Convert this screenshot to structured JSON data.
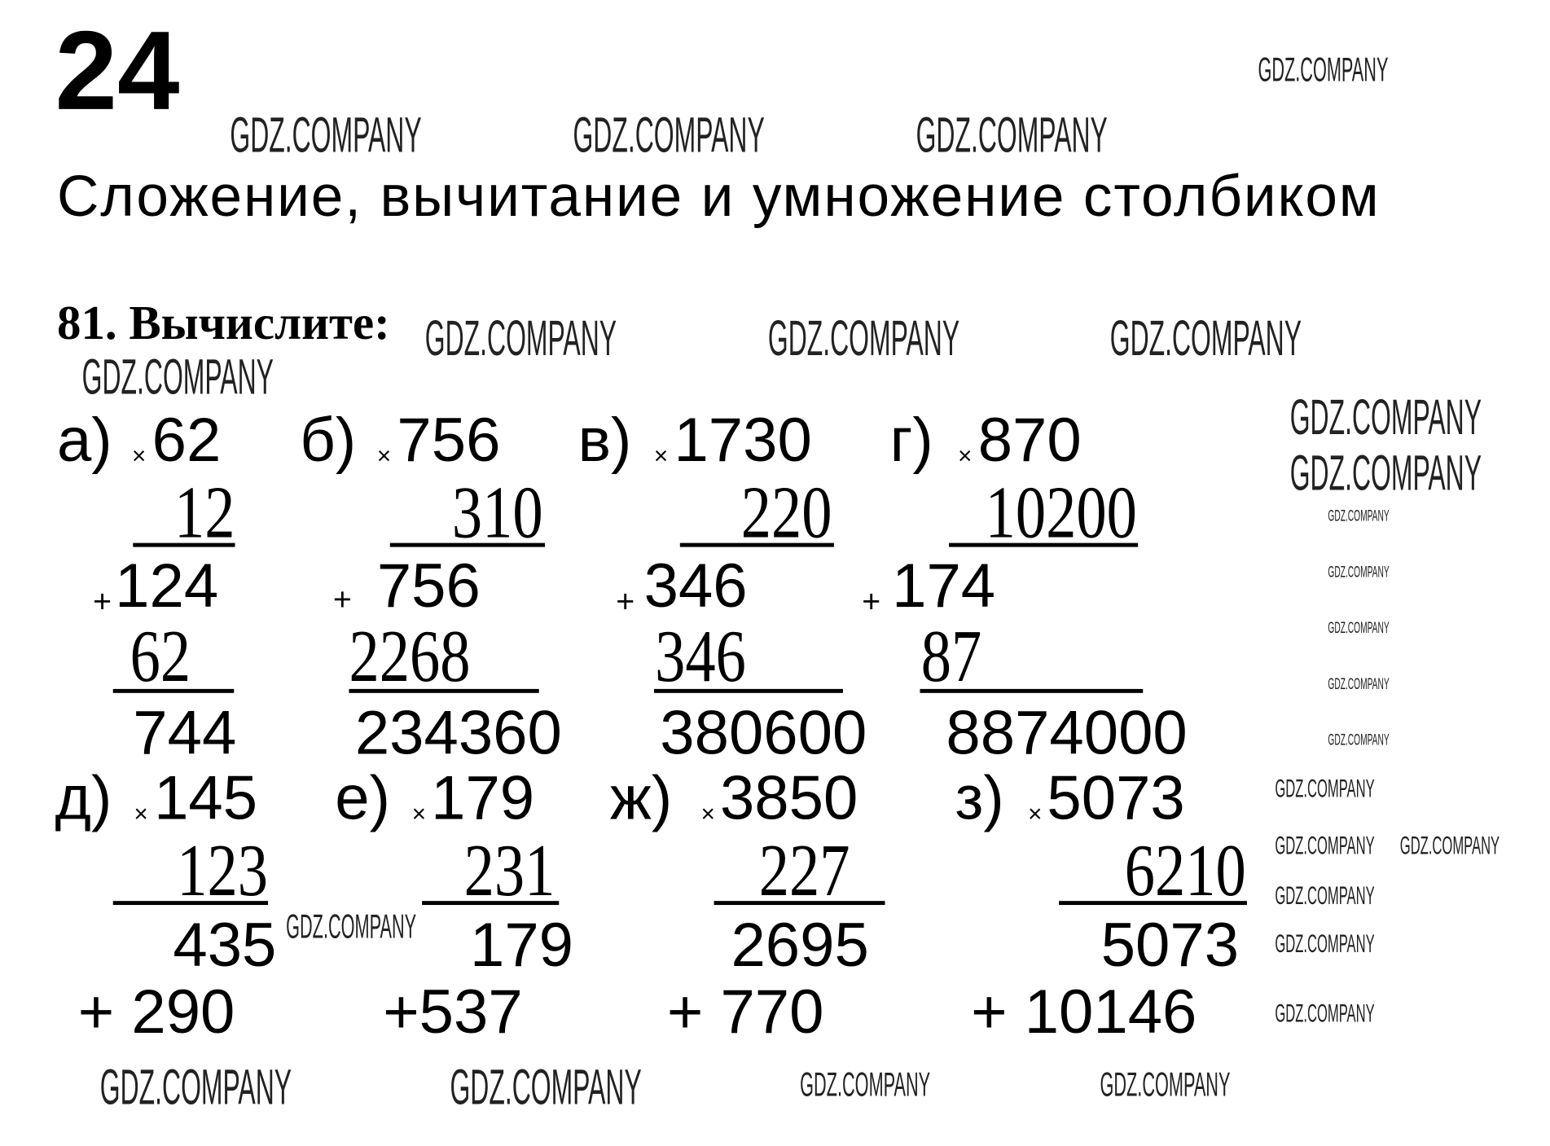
{
  "page_number": "24",
  "heading": "Сложение, вычитание и умножение столбиком",
  "exercise": "81. Вычислите:",
  "watermark": "GDZ.COMPANY",
  "sign_times": "×",
  "sign_plus": "+",
  "problems": [
    {
      "label": "а)",
      "a": "62",
      "b": "12",
      "p1": "124",
      "p2": "62",
      "result": "744"
    },
    {
      "label": "б)",
      "a": "756",
      "b": "310",
      "p1": "756",
      "p2": "2268",
      "result": "234360"
    },
    {
      "label": "в)",
      "a": "1730",
      "b": "220",
      "p1": "346",
      "p2": "346",
      "result": "380600"
    },
    {
      "label": "г)",
      "a": "870",
      "b": "10200",
      "p1": "174",
      "p2": "87",
      "result": "8874000"
    },
    {
      "label": "д)",
      "a": "145",
      "b": "123",
      "p1": "435",
      "p2": "+ 290"
    },
    {
      "label": "е)",
      "a": "179",
      "b": "231",
      "p1": "179",
      "p2": "+537"
    },
    {
      "label": "ж)",
      "a": "3850",
      "b": "227",
      "p1": "2695",
      "p2": "+ 770"
    },
    {
      "label": "з)",
      "a": "5073",
      "b": "6210",
      "p1": "5073",
      "p2": "+ 10146"
    }
  ]
}
